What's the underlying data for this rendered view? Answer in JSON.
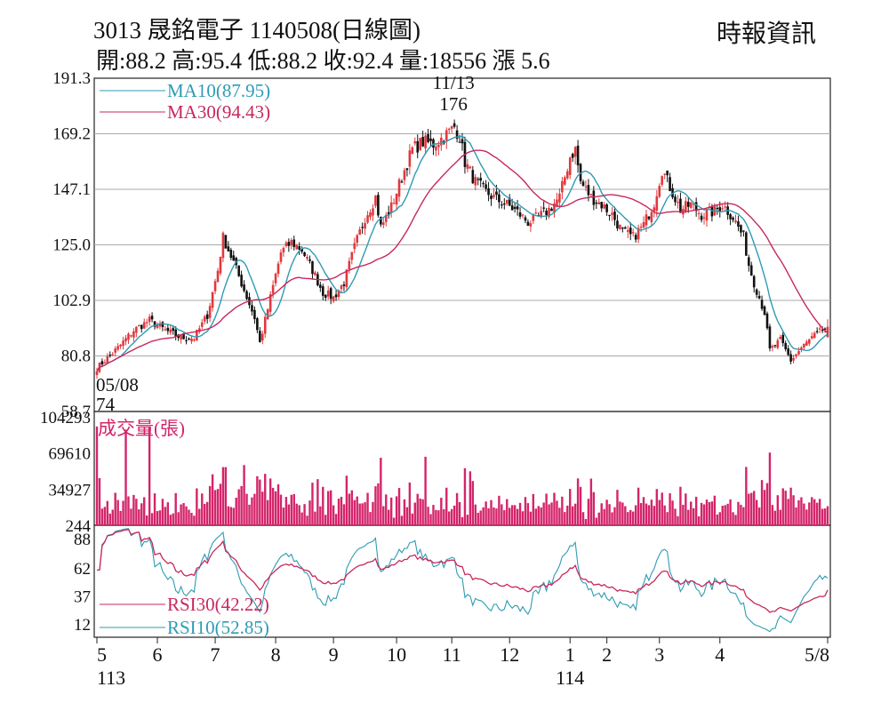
{
  "header": {
    "title": "3013  晟銘電子 1140508(日線圖)",
    "source": "時報資訊",
    "ohlc": "開:88.2 高:95.4 低:88.2 收:92.4 量:18556 漲 5.6"
  },
  "colors": {
    "up": "#e0393e",
    "down": "#111111",
    "ma10": "#2e9bb5",
    "ma30": "#c8285c",
    "volume": "#d4246a",
    "rsi30": "#c8285c",
    "rsi10": "#2e9bb5",
    "grid": "#aaaaaa"
  },
  "chart_data": [
    {
      "type": "candlestick",
      "ylim": [
        58.7,
        191.3
      ],
      "y_ticks": [
        "191.3",
        "169.2",
        "147.1",
        "125.0",
        "102.9",
        "80.8",
        "58.7"
      ],
      "grid": true,
      "legend": [
        "MA10(87.95)",
        "MA30(94.43)"
      ],
      "legend_placement": "top-left",
      "annotations": {
        "high_date": "11/13",
        "high_value": "176",
        "low_date": "05/08",
        "low_value": "74"
      },
      "price_keyframes": [
        [
          0,
          76
        ],
        [
          3,
          79
        ],
        [
          8,
          84
        ],
        [
          14,
          91
        ],
        [
          20,
          95
        ],
        [
          26,
          91
        ],
        [
          32,
          88
        ],
        [
          37,
          88
        ],
        [
          42,
          97
        ],
        [
          46,
          115
        ],
        [
          48,
          128
        ],
        [
          52,
          118
        ],
        [
          56,
          107
        ],
        [
          60,
          96
        ],
        [
          62,
          86
        ],
        [
          66,
          104
        ],
        [
          70,
          122
        ],
        [
          74,
          126
        ],
        [
          78,
          123
        ],
        [
          82,
          115
        ],
        [
          86,
          106
        ],
        [
          90,
          104
        ],
        [
          94,
          110
        ],
        [
          98,
          124
        ],
        [
          102,
          136
        ],
        [
          106,
          144
        ],
        [
          108,
          132
        ],
        [
          112,
          140
        ],
        [
          116,
          152
        ],
        [
          120,
          163
        ],
        [
          124,
          166
        ],
        [
          128,
          165
        ],
        [
          132,
          168
        ],
        [
          136,
          172
        ],
        [
          138,
          168
        ],
        [
          140,
          158
        ],
        [
          144,
          150
        ],
        [
          148,
          146
        ],
        [
          152,
          143
        ],
        [
          156,
          141
        ],
        [
          160,
          138
        ],
        [
          164,
          134
        ],
        [
          168,
          136
        ],
        [
          172,
          139
        ],
        [
          176,
          144
        ],
        [
          180,
          160
        ],
        [
          182,
          163
        ],
        [
          184,
          150
        ],
        [
          188,
          144
        ],
        [
          192,
          141
        ],
        [
          196,
          137
        ],
        [
          200,
          130
        ],
        [
          204,
          128
        ],
        [
          208,
          133
        ],
        [
          212,
          142
        ],
        [
          215,
          155
        ],
        [
          218,
          148
        ],
        [
          222,
          139
        ],
        [
          226,
          141
        ],
        [
          230,
          137
        ],
        [
          234,
          138
        ],
        [
          238,
          141
        ],
        [
          242,
          136
        ],
        [
          246,
          128
        ],
        [
          248,
          117
        ],
        [
          250,
          110
        ],
        [
          254,
          98
        ],
        [
          256,
          83
        ],
        [
          260,
          87
        ],
        [
          264,
          79
        ],
        [
          268,
          84
        ],
        [
          272,
          88
        ],
        [
          276,
          91
        ],
        [
          278,
          92.4
        ]
      ]
    },
    {
      "type": "bar",
      "title": "成交量(張)",
      "y_ticks": [
        "104293",
        "69610",
        "34927",
        "244"
      ],
      "ylim": [
        244,
        104293
      ],
      "spikes": [
        [
          0,
          95000
        ],
        [
          11,
          92000
        ],
        [
          20,
          95000
        ],
        [
          49,
          56000
        ],
        [
          56,
          58000
        ],
        [
          108,
          65000
        ],
        [
          125,
          66000
        ],
        [
          142,
          52000
        ],
        [
          188,
          45000
        ],
        [
          213,
          35000
        ]
      ],
      "base_level": 12000,
      "last_value": 18556
    },
    {
      "type": "line",
      "y_ticks": [
        "88",
        "62",
        "37",
        "12"
      ],
      "ylim": [
        0,
        100
      ],
      "series": [
        {
          "name": "RSI30(42.22)",
          "value": 42.22
        },
        {
          "name": "RSI10(52.85)",
          "value": 52.85
        }
      ],
      "legend_placement": "bottom-left"
    }
  ],
  "x_axis": {
    "months": [
      "5",
      "6",
      "7",
      "8",
      "9",
      "10",
      "11",
      "12",
      "1",
      "2",
      "3",
      "4",
      "5/8"
    ],
    "years": [
      "113",
      "114"
    ]
  }
}
